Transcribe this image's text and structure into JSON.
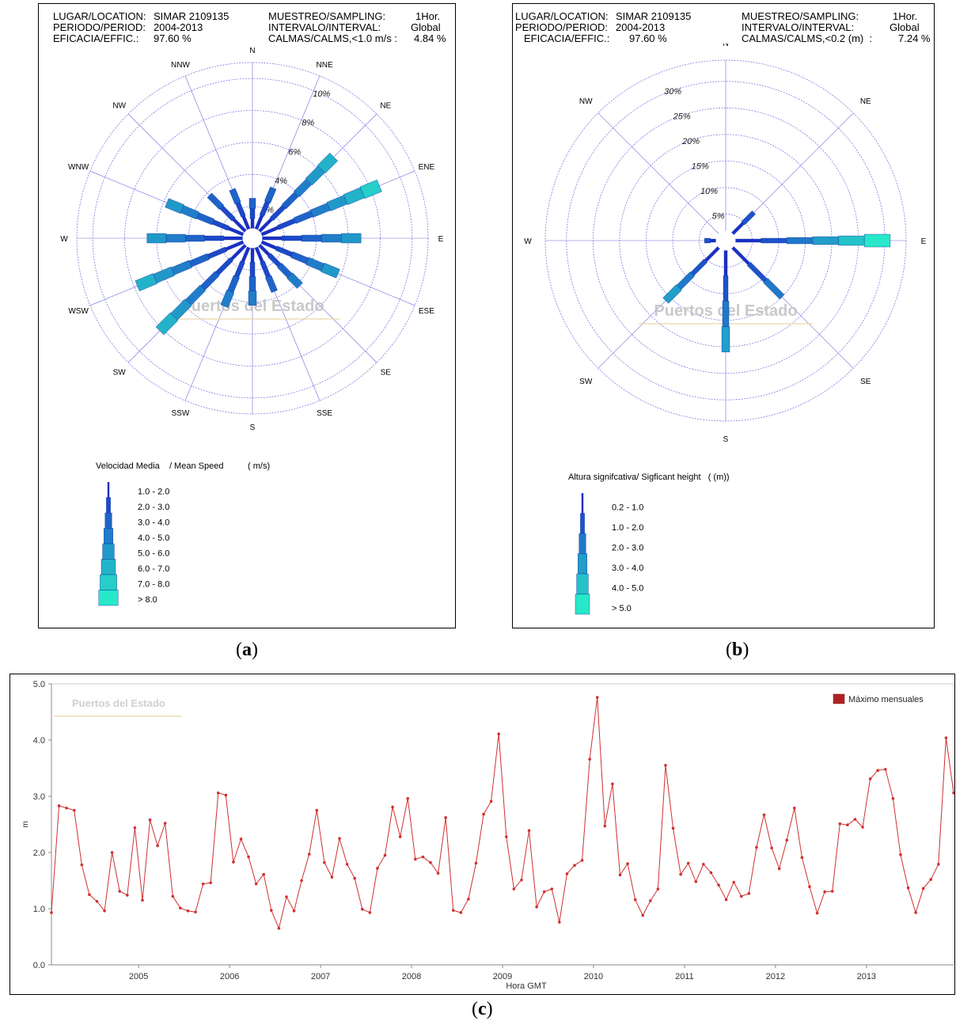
{
  "panel_a": {
    "header": {
      "location_label": "LUGAR/LOCATION:",
      "location_value": "SIMAR 2109135",
      "period_label": "PERIODO/PERIOD:",
      "period_value": "2004-2013",
      "efficacy_label": "EFICACIA/EFFIC.:",
      "efficacy_value": "97.60 %",
      "sampling_label": "MUESTREO/SAMPLING:",
      "sampling_value": "1Hor.",
      "interval_label": "INTERVALO/INTERVAL:",
      "interval_value": "Global",
      "calms_label": "CALMAS/CALMS,<1.0 m/s :",
      "calms_value": "4.84 %"
    },
    "legend_title": "Velocidad Media    / Mean Speed          ( m/s)",
    "caption_open": "(",
    "caption_letter": "a",
    "caption_close": ")",
    "watermark": "Puertos del Estado"
  },
  "panel_b": {
    "header": {
      "location_label": "LUGAR/LOCATION:",
      "location_value": "SIMAR 2109135",
      "period_label": "PERIODO/PERIOD:",
      "period_value": "2004-2013",
      "efficacy_label": "EFICACIA/EFFIC.:",
      "efficacy_value": "97.60 %",
      "sampling_label": "MUESTREO/SAMPLING:",
      "sampling_value": "1Hor.",
      "interval_label": "INTERVALO/INTERVAL:",
      "interval_value": "Global",
      "calms_label": "CALMAS/CALMS,<0.2 (m)  :",
      "calms_value": "7.24 %"
    },
    "legend_title": "Altura signifcativa/ Sigficant height   ( (m))",
    "caption_open": "(",
    "caption_letter": "b",
    "caption_close": ")",
    "watermark": "Puertos del Estado"
  },
  "panel_c": {
    "legend_label": "Máximo mensuales",
    "xlabel": "Hora GMT",
    "ylabel": "m",
    "watermark": "Puertos del Estado",
    "caption_open": "(",
    "caption_letter": "c",
    "caption_close": ")"
  },
  "colors": {
    "grid": "#6b6be0",
    "rose_dark": "#1a2fc8",
    "rose_light": "#27e8c8",
    "line": "#d03030",
    "legend_box": "#b22222",
    "watermark": "#c0c0c0",
    "watermark_line": "#e8d8a8"
  },
  "chart_data": [
    {
      "type": "rose",
      "id": "wind_rose",
      "directions": [
        "N",
        "NNE",
        "NE",
        "ENE",
        "E",
        "ESE",
        "SE",
        "SSE",
        "S",
        "SSW",
        "SW",
        "WSW",
        "W",
        "WNW",
        "NW",
        "NNW"
      ],
      "ring_labels": [
        "2%",
        "4%",
        "6%",
        "8%",
        "10%"
      ],
      "ring_values": [
        2,
        4,
        6,
        8,
        10
      ],
      "rmax": 11,
      "legend": [
        "1.0 -  2.0",
        "2.0 -  3.0",
        "3.0 -  4.0",
        "4.0 -  5.0",
        "5.0 -  6.0",
        "6.0 -  7.0",
        "7.0 -  8.0",
        "> 8.0"
      ],
      "values": [
        2.5,
        3.4,
        7.2,
        8.6,
        6.8,
        5.8,
        4.2,
        3.6,
        4.2,
        4.6,
        8.2,
        7.8,
        6.6,
        5.8,
        3.8,
        3.3
      ]
    },
    {
      "type": "rose",
      "id": "wave_rose",
      "directions": [
        "N",
        "NE",
        "E",
        "SE",
        "S",
        "SW",
        "W",
        "NW"
      ],
      "ring_labels": [
        "5%",
        "10%",
        "15%",
        "20%",
        "25%",
        "30%"
      ],
      "ring_values": [
        5,
        10,
        15,
        20,
        25,
        30
      ],
      "rmax": 34,
      "legend": [
        "0.2 -  1.0",
        "1.0 -  2.0",
        "2.0 -  3.0",
        "3.0 -  4.0",
        "4.0 -  5.0",
        "> 5.0"
      ],
      "values": [
        1.0,
        7.5,
        31.0,
        15.0,
        21.0,
        16.0,
        4.0,
        1.5
      ]
    },
    {
      "type": "line",
      "id": "monthly_max",
      "series_name": "Máximo mensuales",
      "xlabel": "Hora GMT",
      "ylabel": "m",
      "ylim": [
        0,
        5
      ],
      "y_ticks": [
        "0.0",
        "1.0",
        "2.0",
        "3.0",
        "4.0",
        "5.0"
      ],
      "x_ticks": [
        "2005",
        "2006",
        "2007",
        "2008",
        "2009",
        "2010",
        "2011",
        "2012",
        "2013"
      ],
      "start": "2004-01",
      "values": [
        0.93,
        2.83,
        2.79,
        2.75,
        1.78,
        1.25,
        1.13,
        0.96,
        2.0,
        1.31,
        1.24,
        2.44,
        1.15,
        2.58,
        2.12,
        2.52,
        1.22,
        1.01,
        0.96,
        0.94,
        1.44,
        1.46,
        3.06,
        3.02,
        1.83,
        2.24,
        1.92,
        1.44,
        1.61,
        0.97,
        0.65,
        1.21,
        0.96,
        1.5,
        1.97,
        2.75,
        1.82,
        1.56,
        2.25,
        1.79,
        1.54,
        0.99,
        0.93,
        1.72,
        1.95,
        2.81,
        2.28,
        2.96,
        1.88,
        1.92,
        1.82,
        1.63,
        2.62,
        0.97,
        0.93,
        1.17,
        1.81,
        2.68,
        2.91,
        4.11,
        2.28,
        1.35,
        1.51,
        2.39,
        1.03,
        1.3,
        1.35,
        0.76,
        1.62,
        1.77,
        1.86,
        3.66,
        4.76,
        2.47,
        3.22,
        1.6,
        1.8,
        1.16,
        0.88,
        1.14,
        1.35,
        3.55,
        2.43,
        1.61,
        1.81,
        1.48,
        1.79,
        1.64,
        1.42,
        1.16,
        1.47,
        1.22,
        1.27,
        2.09,
        2.67,
        2.08,
        1.71,
        2.22,
        2.79,
        1.91,
        1.39,
        0.92,
        1.3,
        1.31,
        2.51,
        2.49,
        2.59,
        2.45,
        3.31,
        3.46,
        3.48,
        2.96,
        1.96,
        1.37,
        0.93,
        1.36,
        1.52,
        1.79,
        4.04,
        3.06
      ]
    }
  ]
}
